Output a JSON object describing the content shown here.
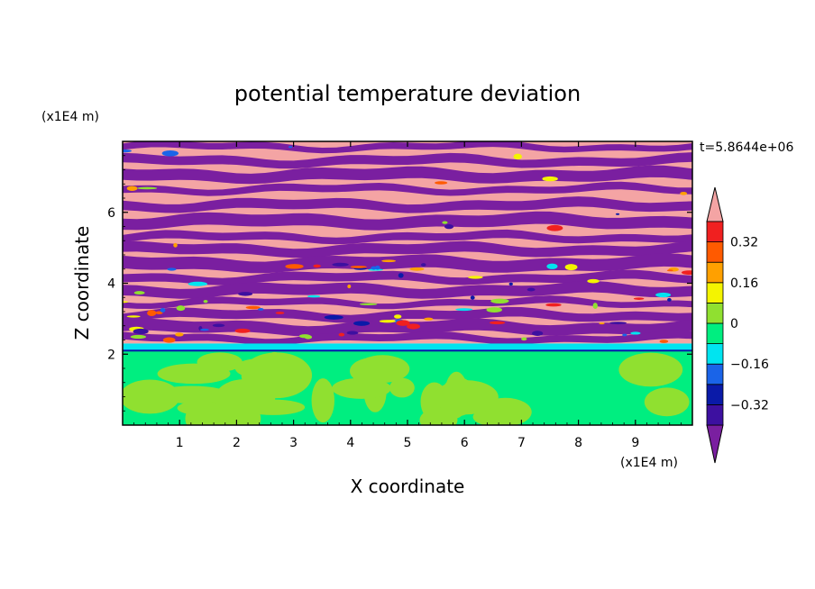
{
  "chart_data": {
    "type": "heatmap",
    "title": "potential temperature deviation",
    "xlabel": "X coordinate",
    "ylabel": "Z coordinate",
    "x_unit_label": "(x1E4 m)",
    "y_unit_label": "(x1E4 m)",
    "time_label": "t=5.8644e+06",
    "xlim": [
      0,
      10
    ],
    "ylim": [
      0,
      8
    ],
    "x_ticks": [
      "1",
      "2",
      "3",
      "4",
      "5",
      "6",
      "7",
      "8",
      "9"
    ],
    "y_ticks": [
      "2",
      "4",
      "6"
    ],
    "colorbar": {
      "tick_labels": [
        "0.32",
        "0.16",
        "0",
        "−0.16",
        "−0.32"
      ],
      "tick_values": [
        0.32,
        0.16,
        0,
        -0.16,
        -0.32
      ],
      "levels": [
        {
          "max": -0.4,
          "color": "#7a1fa0"
        },
        {
          "min": -0.4,
          "max": -0.32,
          "color": "#3d10a0"
        },
        {
          "min": -0.32,
          "max": -0.24,
          "color": "#0a1aa8"
        },
        {
          "min": -0.24,
          "max": -0.16,
          "color": "#1a64e8"
        },
        {
          "min": -0.16,
          "max": -0.08,
          "color": "#00e4f0"
        },
        {
          "min": -0.08,
          "max": 0.0,
          "color": "#00ee80"
        },
        {
          "min": 0.0,
          "max": 0.08,
          "color": "#90e030"
        },
        {
          "min": 0.08,
          "max": 0.16,
          "color": "#f4f400"
        },
        {
          "min": 0.16,
          "max": 0.24,
          "color": "#ffa000"
        },
        {
          "min": 0.24,
          "max": 0.32,
          "color": "#ff5a00"
        },
        {
          "min": 0.32,
          "max": 0.4,
          "color": "#f02020"
        },
        {
          "min": 0.4,
          "color": "#f4a4a4"
        }
      ]
    },
    "field_description": {
      "lower_layer_z_range": [
        0,
        2.1
      ],
      "lower_layer_values": "mostly -0.08 to 0.08 (green / yellow-green)",
      "thin_layer_z_range": [
        2.1,
        2.3
      ],
      "thin_layer_value": "-0.16 to -0.08 (cyan)",
      "upper_layer_z_range": [
        2.3,
        8
      ],
      "upper_layer_values": "alternating horizontal bands below -0.40 (purple) and above 0.40 (pink)"
    }
  }
}
